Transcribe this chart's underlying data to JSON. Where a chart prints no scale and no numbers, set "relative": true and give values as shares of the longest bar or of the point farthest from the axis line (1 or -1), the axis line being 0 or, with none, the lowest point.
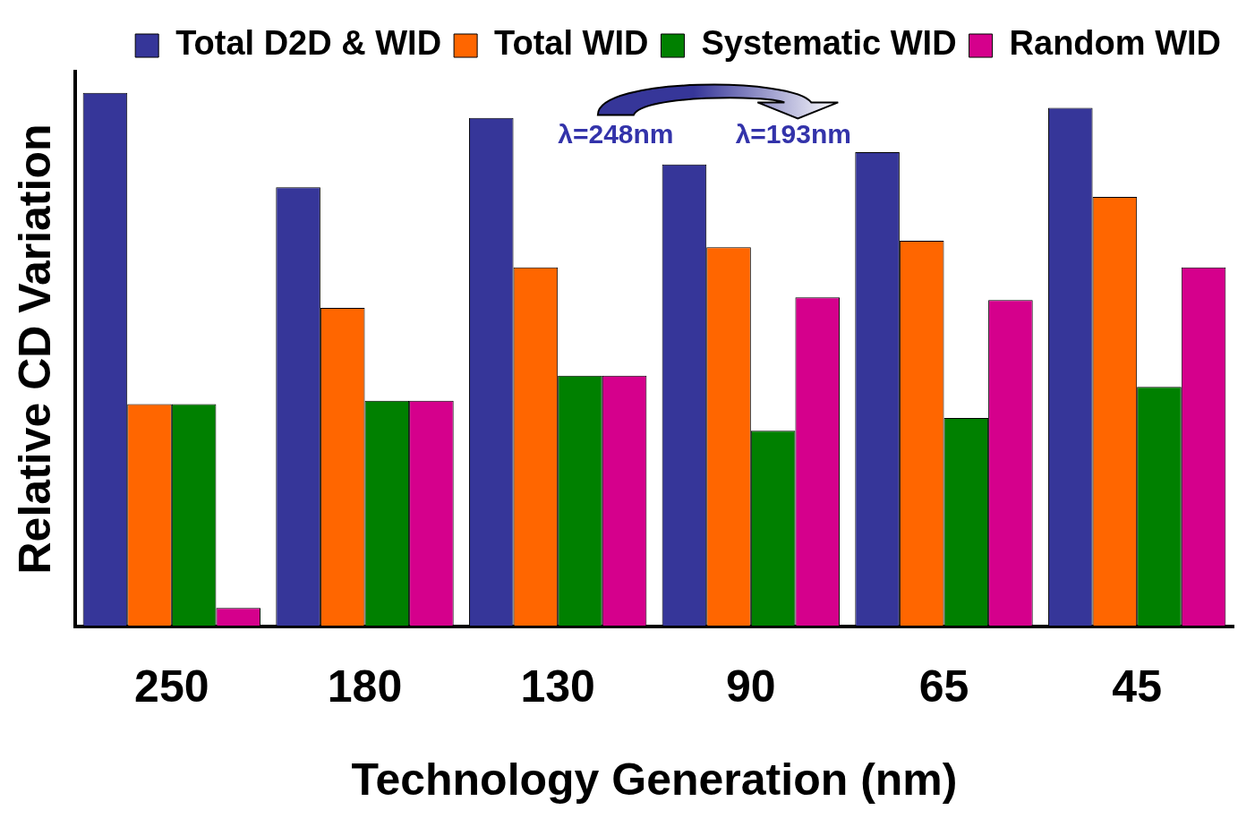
{
  "chart_data": {
    "type": "bar",
    "relative": true,
    "xlabel": "Technology Generation (nm)",
    "ylabel": "Relative CD Variation",
    "categories": [
      "250",
      "180",
      "130",
      "90",
      "65",
      "45"
    ],
    "series": [
      {
        "name": "Total D2D & WID",
        "color": "#363699",
        "values": [
          1.0,
          0.823,
          0.953,
          0.866,
          0.889,
          0.972
        ]
      },
      {
        "name": "Total WID",
        "color": "#ff6600",
        "values": [
          0.417,
          0.597,
          0.673,
          0.711,
          0.723,
          0.805
        ]
      },
      {
        "name": "Systematic WID",
        "color": "#008000",
        "values": [
          0.417,
          0.423,
          0.47,
          0.367,
          0.391,
          0.449
        ]
      },
      {
        "name": "Random WID",
        "color": "#d5008c",
        "values": [
          0.035,
          0.423,
          0.47,
          0.617,
          0.612,
          0.673
        ]
      }
    ],
    "annotations": [
      "λ=248nm",
      "λ=193nm"
    ],
    "legend": "top right",
    "grid": false
  }
}
